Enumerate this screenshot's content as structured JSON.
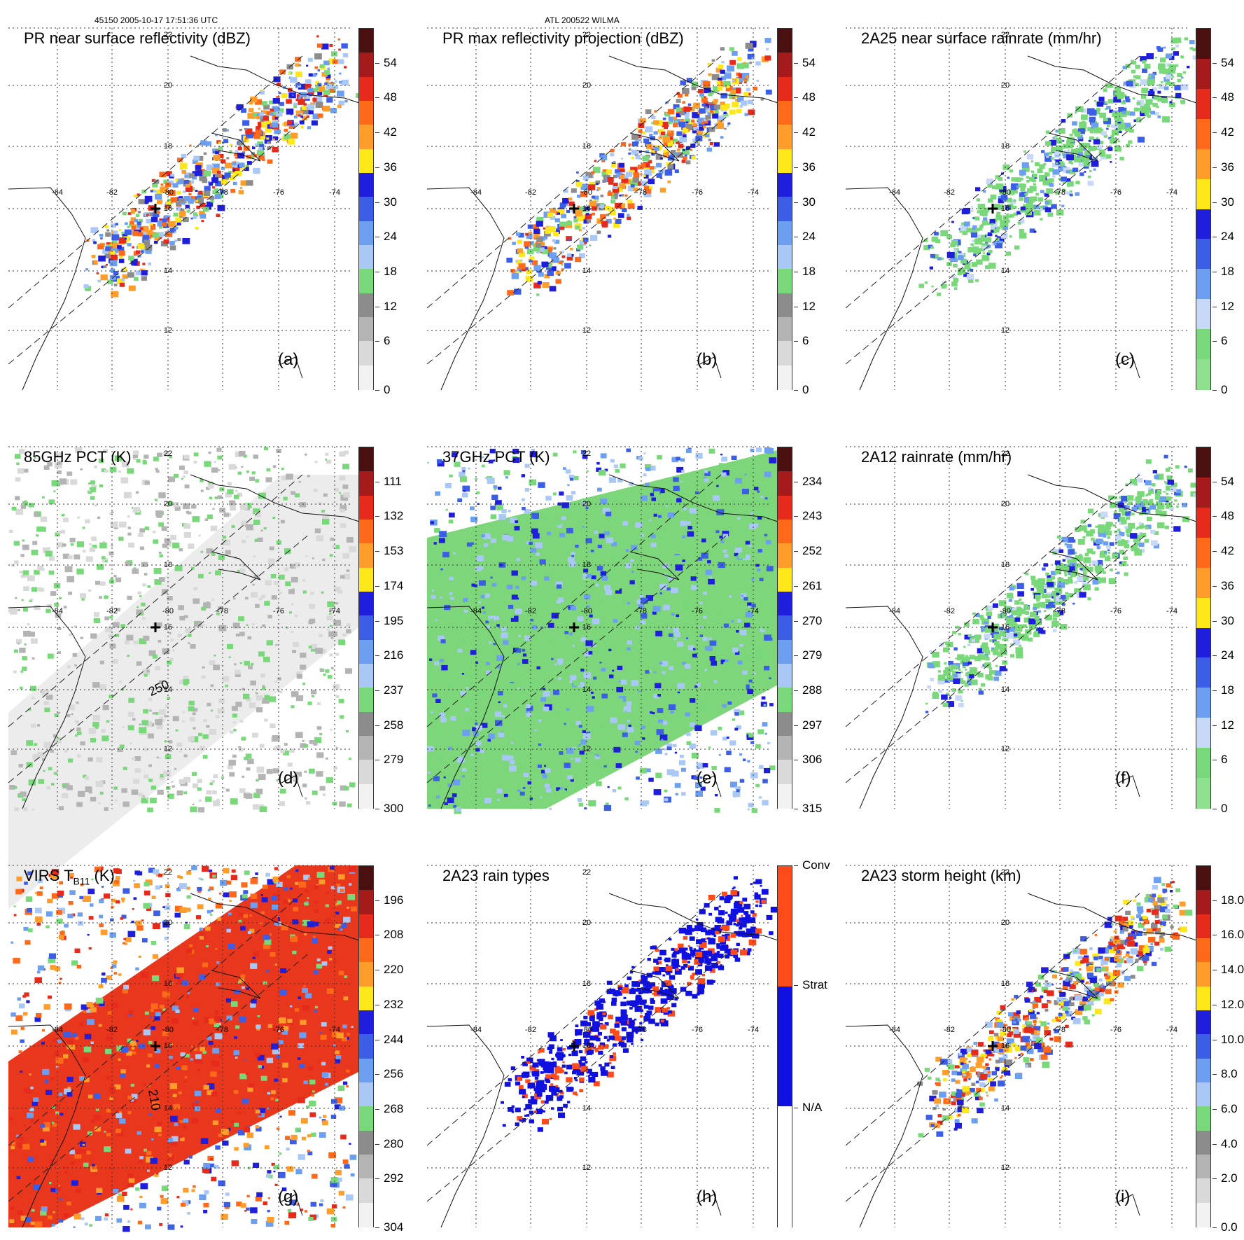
{
  "header": {
    "left": "45150 2005-10-17 17:51:36 UTC",
    "center": "ATL 200522 WILMA"
  },
  "lon_labels": [
    "-84",
    "-82",
    "-80",
    "-78",
    "-76",
    "-74"
  ],
  "lat_labels": [
    "22",
    "20",
    "18",
    "16",
    "14",
    "12"
  ],
  "panels": [
    {
      "title": "PR near surface reflectivity (dBZ)",
      "label": "(a)",
      "ticks": [
        "54",
        "48",
        "42",
        "36",
        "30",
        "24",
        "18",
        "12",
        "6",
        "0"
      ],
      "colors": [
        "#4a0f0f",
        "#a51a1a",
        "#e62b1d",
        "#ff6a1a",
        "#ff9d2a",
        "#ffe81a",
        "#1e1edc",
        "#3c5ee6",
        "#6c9ff0",
        "#a9c8f5",
        "#79d879",
        "#8c8c8c",
        "#b4b4b4",
        "#d9d9d9",
        "#f2f2f2"
      ]
    },
    {
      "title": "PR max reflectivity projection (dBZ)",
      "label": "(b)",
      "ticks": [
        "54",
        "48",
        "42",
        "36",
        "30",
        "24",
        "18",
        "12",
        "6",
        "0"
      ],
      "colors": [
        "#4a0f0f",
        "#a51a1a",
        "#e62b1d",
        "#ff6a1a",
        "#ff9d2a",
        "#ffe81a",
        "#1e1edc",
        "#3c5ee6",
        "#6c9ff0",
        "#a9c8f5",
        "#79d879",
        "#8c8c8c",
        "#b4b4b4",
        "#d9d9d9",
        "#f2f2f2"
      ]
    },
    {
      "title": "2A25 near surface rainrate (mm/hr)",
      "label": "(c)",
      "ticks": [
        "54",
        "48",
        "42",
        "36",
        "30",
        "24",
        "18",
        "12",
        "6",
        "0"
      ],
      "colors": [
        "#4a0f0f",
        "#a51a1a",
        "#e62b1d",
        "#ff6a1a",
        "#ff9d2a",
        "#ffe81a",
        "#1e1edc",
        "#3c5ee6",
        "#6c9ff0",
        "#c8d8f8",
        "#79d879",
        "#8fe08f"
      ]
    },
    {
      "title": "85GHz PCT (K)",
      "label": "(d)",
      "ticks": [
        "111",
        "132",
        "153",
        "174",
        "195",
        "216",
        "237",
        "258",
        "279",
        "300"
      ],
      "colors": [
        "#4a0f0f",
        "#a51a1a",
        "#e62b1d",
        "#ff6a1a",
        "#ff9d2a",
        "#ffe81a",
        "#1e1edc",
        "#3c5ee6",
        "#6c9ff0",
        "#a9c8f5",
        "#79d879",
        "#8c8c8c",
        "#b4b4b4",
        "#d9d9d9",
        "#f2f2f2"
      ]
    },
    {
      "title": "37GHz PCT (K)",
      "label": "(e)",
      "ticks": [
        "234",
        "243",
        "252",
        "261",
        "270",
        "279",
        "288",
        "297",
        "306",
        "315"
      ],
      "colors": [
        "#4a0f0f",
        "#a51a1a",
        "#e62b1d",
        "#ff6a1a",
        "#ff9d2a",
        "#ffe81a",
        "#1e1edc",
        "#3c5ee6",
        "#6c9ff0",
        "#a9c8f5",
        "#79d879",
        "#8c8c8c",
        "#b4b4b4",
        "#d9d9d9",
        "#f2f2f2"
      ]
    },
    {
      "title": "2A12 rainrate (mm/hr)",
      "label": "(f)",
      "ticks": [
        "54",
        "48",
        "42",
        "36",
        "30",
        "24",
        "18",
        "12",
        "6",
        "0"
      ],
      "colors": [
        "#4a0f0f",
        "#a51a1a",
        "#e62b1d",
        "#ff6a1a",
        "#ff9d2a",
        "#ffe81a",
        "#1e1edc",
        "#3c5ee6",
        "#6c9ff0",
        "#c8d8f8",
        "#79d879",
        "#8fe08f"
      ]
    },
    {
      "title": "VIRS T",
      "title_sub": "B11",
      "title_tail": " (K)",
      "label": "(g)",
      "ticks": [
        "196",
        "208",
        "220",
        "232",
        "244",
        "256",
        "268",
        "280",
        "292",
        "304"
      ],
      "colors": [
        "#4a0f0f",
        "#a51a1a",
        "#e62b1d",
        "#ff6a1a",
        "#ff9d2a",
        "#ffe81a",
        "#1e1edc",
        "#3c5ee6",
        "#6c9ff0",
        "#a9c8f5",
        "#79d879",
        "#8c8c8c",
        "#b4b4b4",
        "#d9d9d9",
        "#f2f2f2"
      ]
    },
    {
      "title": "2A23 rain types",
      "label": "(h)",
      "ticks": [
        "Conv",
        "Strat",
        "N/A"
      ],
      "colors": [
        "#ff4a1a",
        "#1010e0",
        "#ffffff"
      ]
    },
    {
      "title": "2A23 storm height (km)",
      "label": "(i)",
      "ticks": [
        "18.0",
        "16.0",
        "14.0",
        "12.0",
        "10.0",
        "8.0",
        "6.0",
        "4.0",
        "2.0",
        "0.0"
      ],
      "colors": [
        "#4a0f0f",
        "#a51a1a",
        "#e62b1d",
        "#ff6a1a",
        "#ff9d2a",
        "#ffe81a",
        "#1e1edc",
        "#3c5ee6",
        "#6c9ff0",
        "#a9c8f5",
        "#79d879",
        "#8c8c8c",
        "#b4b4b4",
        "#d9d9d9",
        "#f2f2f2"
      ]
    }
  ],
  "annotations": {
    "contour_d": "250",
    "contour_g": "210"
  }
}
